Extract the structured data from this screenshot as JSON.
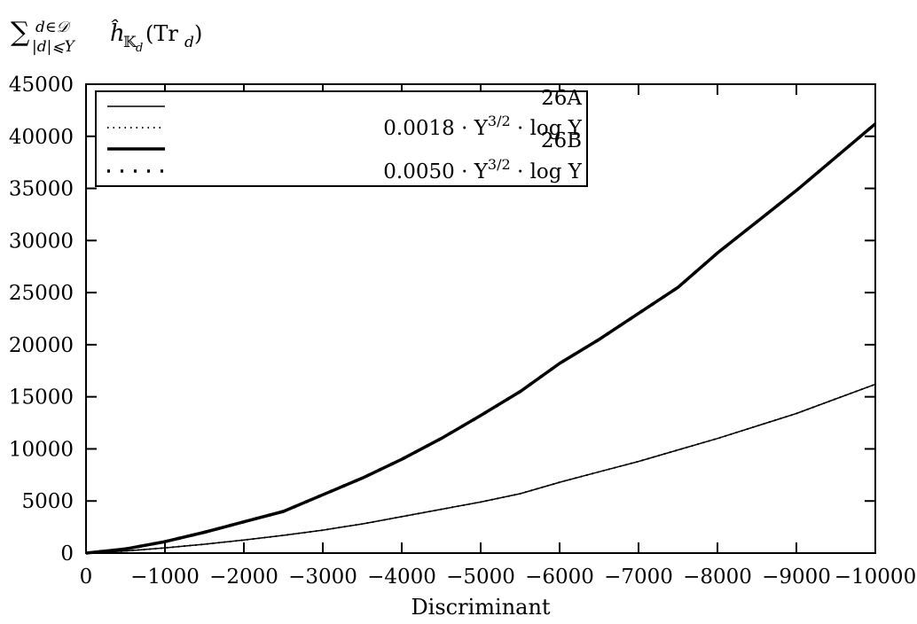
{
  "chart_data": {
    "type": "line",
    "ylabel": {
      "sum_sign": "∑",
      "subscript_top": "d∈𝒟",
      "subscript_bottom": "|d|⩽Y",
      "expression_prefix": "ĥ",
      "expression_subscript": "𝕂",
      "expression_subsubscript": "d",
      "expression_body": "(Tr",
      "expression_tail_sub": "d",
      "expression_close": ")"
    },
    "xlabel": "Discriminant",
    "x_ticks": [
      0,
      -1000,
      -2000,
      -3000,
      -4000,
      -5000,
      -6000,
      -7000,
      -8000,
      -9000,
      -10000
    ],
    "x_tick_labels": [
      "0",
      "−1000",
      "−2000",
      "−3000",
      "−4000",
      "−5000",
      "−6000",
      "−7000",
      "−8000",
      "−9000",
      "−10000"
    ],
    "y_ticks": [
      0,
      5000,
      10000,
      15000,
      20000,
      25000,
      30000,
      35000,
      40000,
      45000
    ],
    "y_tick_labels": [
      "0",
      "5000",
      "10000",
      "15000",
      "20000",
      "25000",
      "30000",
      "35000",
      "40000",
      "45000"
    ],
    "xlim": [
      0,
      -10000
    ],
    "ylim": [
      0,
      45000
    ],
    "legend_position": "top-left",
    "series": [
      {
        "name": "26A",
        "style": "solid-thin",
        "x": [
          0,
          -500,
          -1000,
          -1500,
          -2000,
          -2500,
          -3000,
          -3500,
          -4000,
          -4500,
          -5000,
          -5500,
          -6000,
          -6500,
          -7000,
          -7500,
          -8000,
          -8500,
          -9000,
          -9500,
          -10000
        ],
        "y": [
          0,
          200,
          500,
          850,
          1250,
          1700,
          2200,
          2800,
          3500,
          4200,
          4900,
          5700,
          6800,
          7800,
          8800,
          9900,
          11000,
          12200,
          13400,
          14800,
          16200
        ]
      },
      {
        "name": "0.0018 · Y^{3/2} · log Y",
        "label_parts": {
          "coef": "0.0018 · Y",
          "exp": "3/2",
          "tail": " · log Y"
        },
        "style": "dotted-fine",
        "x": [
          0,
          -500,
          -1000,
          -1500,
          -2000,
          -2500,
          -3000,
          -3500,
          -4000,
          -4500,
          -5000,
          -5500,
          -6000,
          -6500,
          -7000,
          -7500,
          -8000,
          -8500,
          -9000,
          -9500,
          -10000
        ],
        "y": [
          0,
          200,
          500,
          850,
          1250,
          1700,
          2200,
          2800,
          3500,
          4200,
          4900,
          5700,
          6800,
          7800,
          8800,
          9900,
          11000,
          12200,
          13400,
          14800,
          16200
        ]
      },
      {
        "name": "26B",
        "style": "solid-thick",
        "x": [
          0,
          -500,
          -1000,
          -1500,
          -2000,
          -2500,
          -3000,
          -3500,
          -4000,
          -4500,
          -5000,
          -5500,
          -6000,
          -6500,
          -7000,
          -7500,
          -8000,
          -8500,
          -9000,
          -9500,
          -10000
        ],
        "y": [
          0,
          400,
          1100,
          2000,
          3000,
          4000,
          5600,
          7200,
          9000,
          11000,
          13200,
          15500,
          18200,
          20500,
          23000,
          25500,
          28800,
          31800,
          34800,
          38000,
          41200
        ]
      },
      {
        "name": "0.0050 · Y^{3/2} · log Y",
        "label_parts": {
          "coef": "0.0050 · Y",
          "exp": "3/2",
          "tail": " · log Y"
        },
        "style": "dotted-coarse",
        "x": [
          0,
          -500,
          -1000,
          -1500,
          -2000,
          -2500,
          -3000,
          -3500,
          -4000,
          -4500,
          -5000,
          -5500,
          -6000,
          -6500,
          -7000,
          -7500,
          -8000,
          -8500,
          -9000,
          -9500,
          -10000
        ],
        "y": [
          0,
          400,
          1100,
          2000,
          3000,
          4000,
          5600,
          7200,
          9000,
          11000,
          13200,
          15500,
          18200,
          20500,
          23000,
          25500,
          28800,
          31800,
          34800,
          38000,
          41200
        ]
      }
    ]
  }
}
